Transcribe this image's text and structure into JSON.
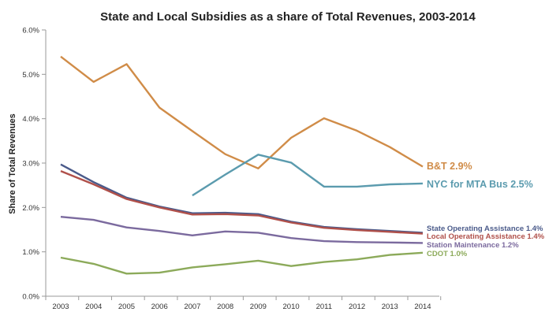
{
  "chart_data": {
    "type": "line",
    "title": "State and Local Subsidies as a share of Total Revenues, 2003-2014",
    "xlabel": "",
    "ylabel": "Share of Total Revenues",
    "x": [
      2003,
      2004,
      2005,
      2006,
      2007,
      2008,
      2009,
      2010,
      2011,
      2012,
      2013,
      2014
    ],
    "y_ticks": [
      "0.0%",
      "1.0%",
      "2.0%",
      "3.0%",
      "4.0%",
      "5.0%",
      "6.0%"
    ],
    "ylim": [
      0,
      6
    ],
    "y_unit": "%",
    "grid": false,
    "legend": "inline labels at line ends",
    "series": [
      {
        "name": "B&T 2.9%",
        "color": "#D08C48",
        "values": [
          5.4,
          4.83,
          5.23,
          4.25,
          3.72,
          3.2,
          2.88,
          3.57,
          4.01,
          3.73,
          3.36,
          2.92
        ]
      },
      {
        "name": "NYC for MTA Bus 2.5%",
        "color": "#5B9BAE",
        "values": [
          null,
          null,
          null,
          null,
          2.27,
          2.74,
          3.19,
          3.01,
          2.47,
          2.47,
          2.52,
          2.54
        ]
      },
      {
        "name": "State Operating Assistance 1.4%",
        "color": "#4A5A8A",
        "values": [
          2.97,
          2.57,
          2.22,
          2.02,
          1.87,
          1.88,
          1.85,
          1.68,
          1.56,
          1.51,
          1.47,
          1.43
        ]
      },
      {
        "name": "Local Operating Assistance 1.4%",
        "color": "#B0504A",
        "values": [
          2.82,
          2.52,
          2.19,
          2.0,
          1.84,
          1.85,
          1.82,
          1.66,
          1.54,
          1.49,
          1.45,
          1.41
        ]
      },
      {
        "name": "Station Maintenance 1.2%",
        "color": "#7B6A9E",
        "values": [
          1.79,
          1.72,
          1.55,
          1.47,
          1.37,
          1.46,
          1.43,
          1.31,
          1.24,
          1.22,
          1.21,
          1.2
        ]
      },
      {
        "name": "CDOT 1.0%",
        "color": "#8CAA5A",
        "values": [
          0.87,
          0.73,
          0.51,
          0.53,
          0.65,
          0.72,
          0.8,
          0.68,
          0.77,
          0.83,
          0.93,
          0.98
        ]
      }
    ]
  }
}
